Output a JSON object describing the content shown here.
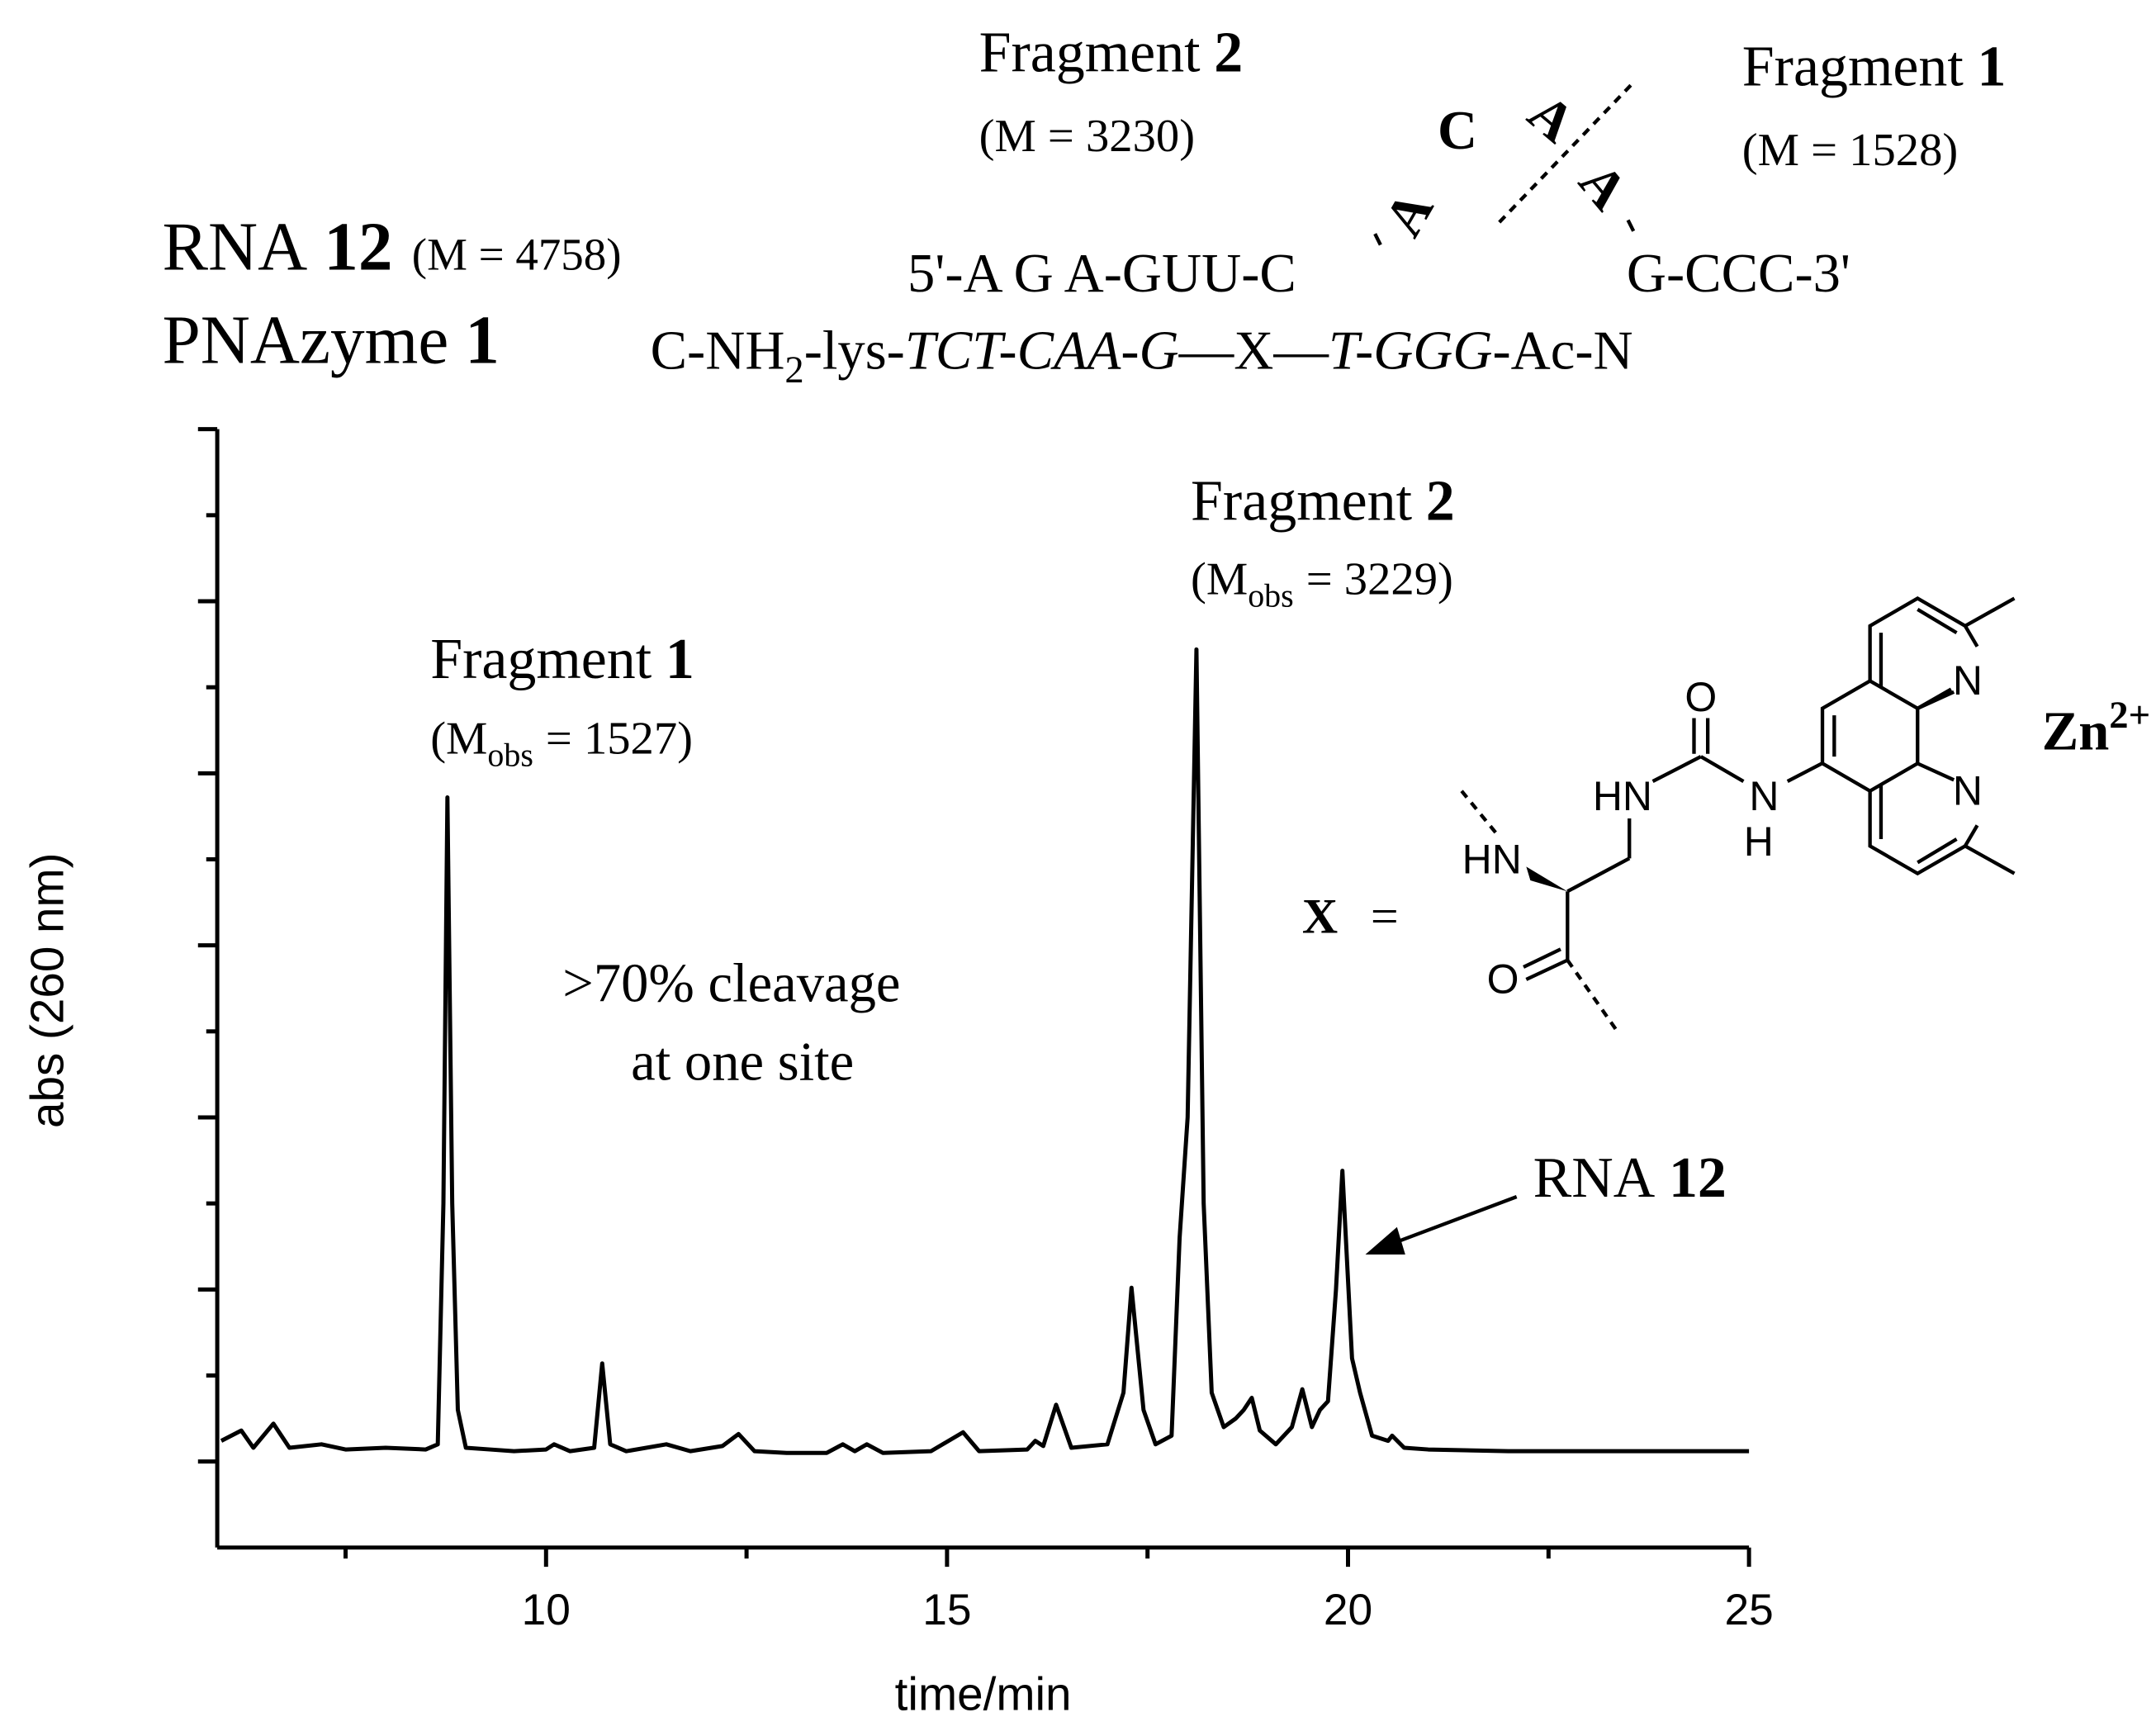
{
  "header": {
    "rna": {
      "name": "RNA",
      "number": "12",
      "mass": "(M = 4758)"
    },
    "pnazyme": {
      "name": "PNAzyme",
      "number": "1"
    },
    "rna_sequence": {
      "left": "5'-A G A-GUU-C",
      "loop": [
        "A",
        "C",
        "A",
        "A"
      ],
      "right": "G-CCC-3'"
    },
    "pna_sequence": [
      "C-NH",
      "2",
      "-lys-",
      "TCT-CAA-G",
      "—X—",
      "T-GGG",
      "-Ac-N"
    ],
    "fragment_2": {
      "name": "Fragment",
      "number": "2",
      "mass": "(M = 3230)"
    },
    "fragment_1": {
      "name": "Fragment",
      "number": "1",
      "mass": "(M = 1528)"
    }
  },
  "chart_data": {
    "type": "line",
    "xlabel": "time/min",
    "ylabel": "abs (260 nm)",
    "color": "#000000",
    "x": [
      5.95,
      6.2,
      6.35,
      6.6,
      6.8,
      7.2,
      7.5,
      8.0,
      8.5,
      8.65,
      8.72,
      8.77,
      8.83,
      8.9,
      9.0,
      9.3,
      9.6,
      10.0,
      10.1,
      10.3,
      10.6,
      10.7,
      10.8,
      11.0,
      11.5,
      11.8,
      12.2,
      12.4,
      12.6,
      13.0,
      13.5,
      13.7,
      13.85,
      14.0,
      14.2,
      14.8,
      15.2,
      15.4,
      16.0,
      16.1,
      16.2,
      16.36,
      16.55,
      17.0,
      17.2,
      17.3,
      17.45,
      17.6,
      17.8,
      17.9,
      18.0,
      18.11,
      18.2,
      18.3,
      18.45,
      18.6,
      18.7,
      18.8,
      18.9,
      19.1,
      19.3,
      19.43,
      19.55,
      19.65,
      19.75,
      19.85,
      19.93,
      20.05,
      20.15,
      20.3,
      20.5,
      20.55,
      20.7,
      21.0,
      22.0,
      25.0
    ],
    "values": [
      0.12,
      0.18,
      0.08,
      0.22,
      0.08,
      0.1,
      0.07,
      0.08,
      0.07,
      0.1,
      1.5,
      3.86,
      1.5,
      0.3,
      0.08,
      0.07,
      0.06,
      0.07,
      0.1,
      0.06,
      0.08,
      0.57,
      0.1,
      0.06,
      0.1,
      0.06,
      0.09,
      0.16,
      0.06,
      0.05,
      0.05,
      0.1,
      0.06,
      0.1,
      0.05,
      0.06,
      0.17,
      0.06,
      0.07,
      0.12,
      0.09,
      0.33,
      0.08,
      0.1,
      0.4,
      1.01,
      0.3,
      0.1,
      0.15,
      1.3,
      2.0,
      4.72,
      1.5,
      0.4,
      0.2,
      0.25,
      0.3,
      0.37,
      0.18,
      0.1,
      0.2,
      0.42,
      0.2,
      0.3,
      0.35,
      1.0,
      1.69,
      0.6,
      0.4,
      0.15,
      0.12,
      0.15,
      0.08,
      0.07,
      0.06,
      0.06
    ],
    "xlim": [
      5.9,
      25
    ],
    "ylim": [
      -0.5,
      6
    ],
    "xticks": [
      10,
      15,
      20,
      25
    ],
    "xminorticks": [
      7.5,
      12.5,
      17.5,
      22.5
    ],
    "yticks": [
      0,
      1,
      2,
      3,
      4,
      5,
      6
    ],
    "yminorticks": [
      0.5,
      1.5,
      2.5,
      3.5,
      4.5,
      5.5
    ],
    "annotations": [
      {
        "name": "Fragment",
        "number": "1",
        "mass": [
          "(M",
          "obs",
          "= 1527)"
        ]
      },
      {
        "name": "Fragment",
        "number": "2",
        "mass": [
          "(M",
          "obs",
          "= 3229)"
        ]
      }
    ],
    "note": [
      ">70% cleavage",
      "at one site"
    ],
    "arrow_label": {
      "name": "RNA",
      "number": "12"
    }
  },
  "structure": {
    "x_label": "X",
    "equals": "=",
    "atoms": [
      "HN",
      "O",
      "HN",
      "N",
      "H",
      "O",
      "N",
      "N"
    ],
    "metal": [
      "Zn",
      "2+"
    ]
  }
}
